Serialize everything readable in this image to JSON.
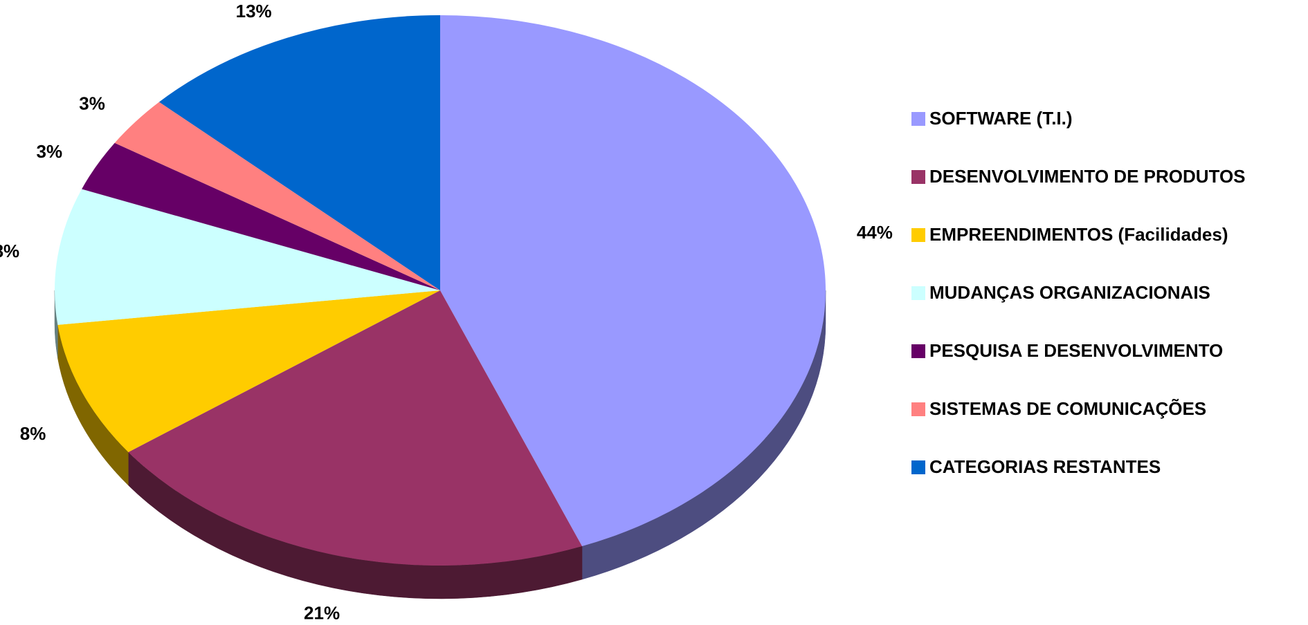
{
  "chart_data": {
    "type": "pie",
    "categories": [
      "SOFTWARE (T.I.)",
      "DESENVOLVIMENTO DE PRODUTOS",
      "EMPREENDIMENTOS (Facilidades)",
      "MUDANÇAS ORGANIZACIONAIS",
      "PESQUISA E DESENVOLVIMENTO",
      "SISTEMAS DE COMUNICAÇÕES",
      "CATEGORIAS RESTANTES"
    ],
    "values": [
      44,
      21,
      8,
      8,
      3,
      3,
      13
    ],
    "value_labels": [
      "44%",
      "21%",
      "8%",
      "8%",
      "3%",
      "3%",
      "13%"
    ],
    "colors": [
      "#9999ff",
      "#993366",
      "#ffcc00",
      "#ccffff",
      "#660066",
      "#ff8080",
      "#0066cc"
    ],
    "legend": "right"
  }
}
